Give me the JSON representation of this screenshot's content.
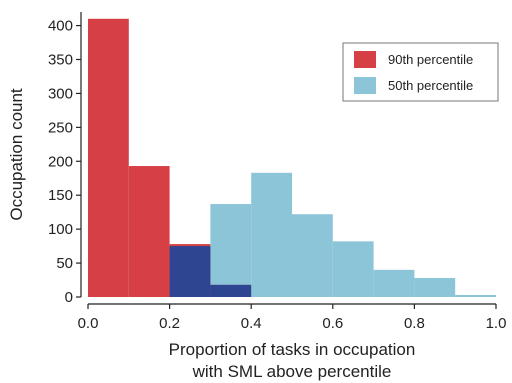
{
  "chart_data": {
    "type": "bar",
    "title": "",
    "xlabel_lines": [
      "Proportion of tasks in occupation",
      "with SML above percentile"
    ],
    "ylabel": "Occupation count",
    "xlim": [
      0.0,
      1.0
    ],
    "ylim": [
      0,
      420
    ],
    "xticks": [
      0.0,
      0.2,
      0.4,
      0.6,
      0.8,
      1.0
    ],
    "xtick_labels": [
      "0.0",
      "0.2",
      "0.4",
      "0.6",
      "0.8",
      "1.0"
    ],
    "yticks": [
      0,
      50,
      100,
      150,
      200,
      250,
      300,
      350,
      400
    ],
    "ytick_labels": [
      "0",
      "50",
      "100",
      "150",
      "200",
      "250",
      "300",
      "350",
      "400"
    ],
    "bin_edges": [
      0.0,
      0.1,
      0.2,
      0.3,
      0.4,
      0.5,
      0.6,
      0.7,
      0.8,
      0.9,
      1.0
    ],
    "legend_position": "top-right",
    "overlap_color": "#2e4592",
    "series": [
      {
        "name": "90th percentile",
        "color": "#d64045",
        "bins": [
          {
            "x0": 0.0,
            "x1": 0.1,
            "count": 410
          },
          {
            "x0": 0.1,
            "x1": 0.2,
            "count": 193
          },
          {
            "x0": 0.2,
            "x1": 0.3,
            "count": 78
          },
          {
            "x0": 0.3,
            "x1": 0.4,
            "count": 18
          }
        ]
      },
      {
        "name": "50th percentile",
        "color": "#8cc5d8",
        "bins": [
          {
            "x0": 0.2,
            "x1": 0.3,
            "count": 75
          },
          {
            "x0": 0.3,
            "x1": 0.4,
            "count": 137
          },
          {
            "x0": 0.4,
            "x1": 0.5,
            "count": 183
          },
          {
            "x0": 0.5,
            "x1": 0.6,
            "count": 122
          },
          {
            "x0": 0.6,
            "x1": 0.7,
            "count": 82
          },
          {
            "x0": 0.7,
            "x1": 0.8,
            "count": 40
          },
          {
            "x0": 0.8,
            "x1": 0.9,
            "count": 28
          },
          {
            "x0": 0.9,
            "x1": 1.0,
            "count": 3
          }
        ]
      }
    ]
  }
}
